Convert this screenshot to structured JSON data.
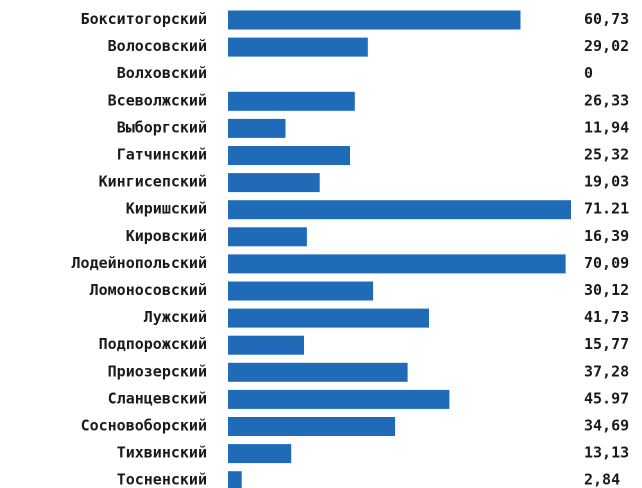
{
  "chart_data": {
    "type": "bar",
    "orientation": "horizontal",
    "title": "",
    "xlabel": "",
    "ylabel": "",
    "grid": false,
    "bar_color": "#1f6bb8",
    "xlim": [
      0,
      71.21
    ],
    "categories": [
      "Бокситогорский",
      "Волосовский",
      "Волховский",
      "Всеволжский",
      "Выборгский",
      "Гатчинский",
      "Кингисепский",
      "Киришский",
      "Кировский",
      "Лодейнопольский",
      "Ломоносовский",
      "Лужский",
      "Подпорожский",
      "Приозерский",
      "Сланцевский",
      "Сосновоборский",
      "Тихвинский",
      "Тосненский"
    ],
    "values": [
      60.73,
      29.02,
      0,
      26.33,
      11.94,
      25.32,
      19.03,
      71.21,
      16.39,
      70.09,
      30.12,
      41.73,
      15.77,
      37.28,
      45.97,
      34.69,
      13.13,
      2.84
    ],
    "value_labels": [
      "60,73",
      "29,02",
      "0",
      "26,33",
      "11,94",
      "25,32",
      "19,03",
      "71.21",
      "16,39",
      "70,09",
      "30,12",
      "41,73",
      "15,77",
      "37,28",
      "45.97",
      "34,69",
      "13,13",
      "2,84"
    ]
  }
}
